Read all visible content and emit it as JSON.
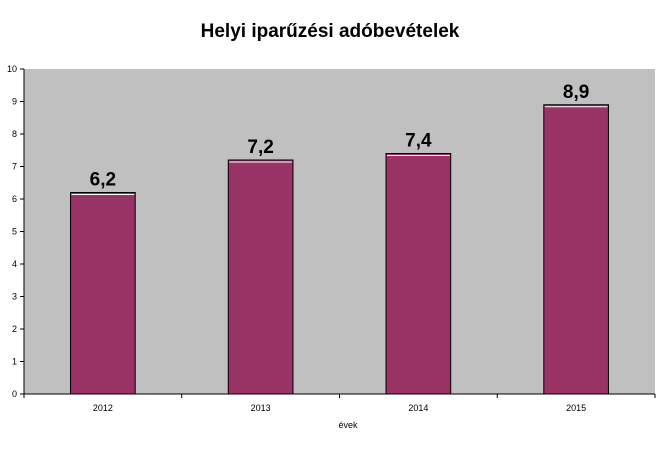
{
  "chart_data": {
    "type": "bar",
    "title": "Helyi iparűzési adóbevételek",
    "xlabel": "évek",
    "ylabel": "",
    "categories": [
      "2012",
      "2013",
      "2014",
      "2015"
    ],
    "values": [
      6.2,
      7.2,
      7.4,
      8.9
    ],
    "data_labels": [
      "6,2",
      "7,2",
      "7,4",
      "8,9"
    ],
    "ylim": [
      0,
      10
    ],
    "yticks": [
      0,
      1,
      2,
      3,
      4,
      5,
      6,
      7,
      8,
      9,
      10
    ],
    "grid": false,
    "legend": "none",
    "colors": {
      "bar": "#993366",
      "plot_background": "#c0c0c0",
      "axis": "#000000"
    }
  }
}
